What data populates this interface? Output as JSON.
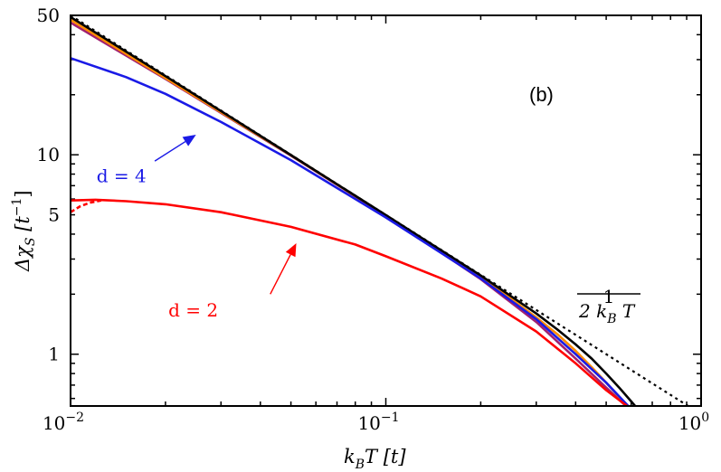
{
  "chart_data": {
    "type": "line",
    "panel_label": "(b)",
    "x_scale": "log",
    "y_scale": "log",
    "xlim": [
      0.01,
      1.0
    ],
    "ylim": [
      0.55,
      50
    ],
    "x_ticks": [
      {
        "value": 0.01,
        "base": "10",
        "exp": "−2"
      },
      {
        "value": 0.1,
        "base": "10",
        "exp": "−1"
      },
      {
        "value": 1.0,
        "base": "10",
        "exp": "0"
      }
    ],
    "y_ticks": [
      {
        "value": 1,
        "label": "1"
      },
      {
        "value": 5,
        "label": "5"
      },
      {
        "value": 10,
        "label": "10"
      },
      {
        "value": 50,
        "label": "50"
      }
    ],
    "xlabel": {
      "main": "k",
      "sub": "B",
      "rest": "T [t]"
    },
    "ylabel": {
      "main": "Δχ",
      "sub": "S",
      "rest": " [t",
      "sup": "−1",
      "close": "]"
    },
    "series": [
      {
        "color": "#000000",
        "style": "dotted",
        "x": [
          0.01,
          0.03,
          0.1,
          0.3,
          1.0
        ],
        "y": [
          50,
          16.67,
          5.0,
          1.667,
          0.5
        ]
      },
      {
        "color": "#a02070",
        "style": "solid",
        "x": [
          0.01,
          0.02,
          0.05,
          0.1,
          0.2,
          0.3,
          0.4,
          0.5,
          0.6
        ],
        "y": [
          46,
          24,
          9.9,
          4.95,
          2.38,
          1.45,
          0.95,
          0.68,
          0.52
        ]
      },
      {
        "color": "#ff8c00",
        "style": "solid",
        "x": [
          0.01,
          0.05,
          0.1,
          0.2,
          0.3,
          0.35,
          0.4,
          0.45,
          0.5,
          0.55,
          0.6
        ],
        "y": [
          47.5,
          9.95,
          4.97,
          2.45,
          1.53,
          1.26,
          1.04,
          0.86,
          0.72,
          0.61,
          0.53
        ]
      },
      {
        "color": "#000000",
        "style": "solid",
        "x": [
          0.01,
          0.02,
          0.05,
          0.1,
          0.2,
          0.3,
          0.35,
          0.4,
          0.45,
          0.5,
          0.55,
          0.6,
          0.63
        ],
        "y": [
          49,
          24.8,
          9.97,
          4.98,
          2.48,
          1.6,
          1.33,
          1.12,
          0.95,
          0.8,
          0.68,
          0.58,
          0.53
        ]
      },
      {
        "color": "#1a1ae6",
        "style": "solid",
        "x": [
          0.01,
          0.015,
          0.02,
          0.03,
          0.05,
          0.1,
          0.2,
          0.3,
          0.4,
          0.5,
          0.6
        ],
        "y": [
          30.5,
          24.5,
          20.2,
          14.6,
          9.4,
          4.85,
          2.4,
          1.5,
          1.0,
          0.72,
          0.53
        ]
      },
      {
        "color": "#ff0000",
        "style": "solid",
        "x": [
          0.01,
          0.012,
          0.015,
          0.02,
          0.03,
          0.05,
          0.08,
          0.1,
          0.15,
          0.2,
          0.3,
          0.4,
          0.5,
          0.6
        ],
        "y": [
          5.9,
          5.95,
          5.85,
          5.65,
          5.15,
          4.35,
          3.55,
          3.1,
          2.4,
          1.95,
          1.3,
          0.9,
          0.66,
          0.53
        ]
      },
      {
        "color": "#ff0000",
        "style": "dashed",
        "x": [
          0.01,
          0.0107,
          0.0115,
          0.0125
        ],
        "y": [
          5.15,
          5.5,
          5.75,
          5.9
        ]
      }
    ],
    "annotations": [
      {
        "text": "d = 4",
        "color": "#1a1ae6",
        "at": [
          0.0145,
          7.3
        ],
        "arrow_from": [
          0.0185,
          9.3
        ],
        "arrow_to": [
          0.025,
          12.6
        ]
      },
      {
        "text": "d = 2",
        "color": "#ff0000",
        "at": [
          0.0245,
          1.55
        ],
        "arrow_from": [
          0.043,
          2.0
        ],
        "arrow_to": [
          0.052,
          3.6
        ]
      }
    ],
    "formula": {
      "numerator": "1",
      "denominator": {
        "lead": "2 k",
        "sub": "B",
        "tail": " T"
      }
    }
  }
}
